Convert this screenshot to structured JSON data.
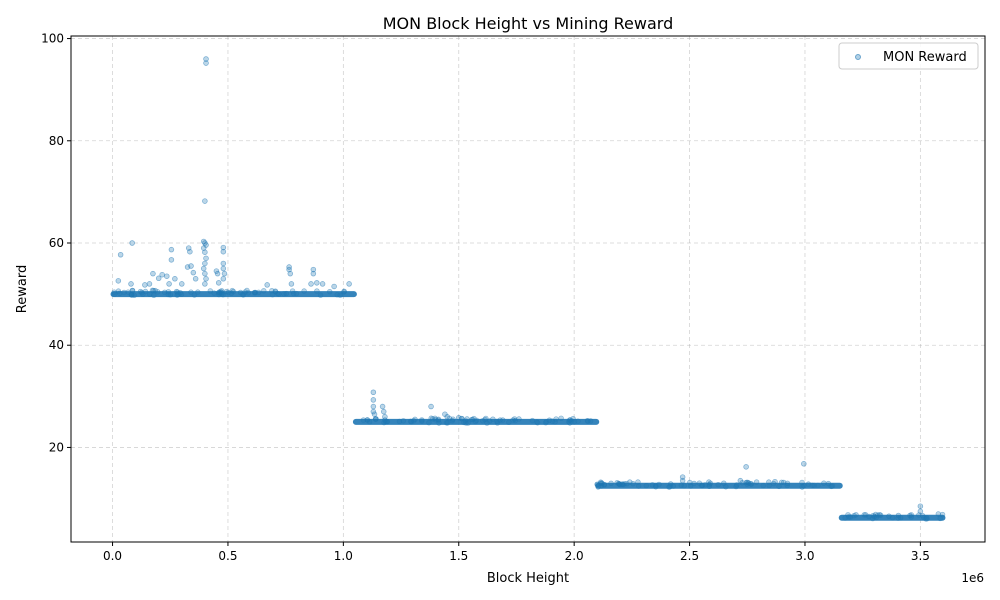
{
  "chart_data": {
    "type": "scatter",
    "title": "MON Block Height vs Mining Reward",
    "xlabel": "Block Height",
    "ylabel": "Reward",
    "x_offset_text": "1e6",
    "xlim": [
      -0.18,
      3.78
    ],
    "ylim": [
      1.5,
      100.5
    ],
    "x_ticks": [
      0.0,
      0.5,
      1.0,
      1.5,
      2.0,
      2.5,
      3.0,
      3.5
    ],
    "x_tick_labels": [
      "0.0",
      "0.5",
      "1.0",
      "1.5",
      "2.0",
      "2.5",
      "3.0",
      "3.5"
    ],
    "y_ticks": [
      20,
      40,
      60,
      80,
      100
    ],
    "y_tick_labels": [
      "20",
      "40",
      "60",
      "80",
      "100"
    ],
    "grid": true,
    "legend_position": "top-right",
    "series": [
      {
        "name": "MON Reward",
        "color": "#1f77b4",
        "marker": "circle",
        "alpha": 0.3,
        "bands": [
          {
            "x_start": 0.0,
            "x_end": 1.05,
            "y": 50.0
          },
          {
            "x_start": 1.05,
            "x_end": 2.1,
            "y": 25.0
          },
          {
            "x_start": 2.1,
            "x_end": 3.155,
            "y": 12.5
          },
          {
            "x_start": 3.155,
            "x_end": 3.6,
            "y": 6.25
          }
        ],
        "outliers": [
          [
            0.405,
            96.0
          ],
          [
            0.405,
            95.2
          ],
          [
            0.4,
            68.2
          ],
          [
            0.395,
            60.3
          ],
          [
            0.4,
            60.0
          ],
          [
            0.405,
            59.6
          ],
          [
            0.395,
            59.0
          ],
          [
            0.4,
            58.2
          ],
          [
            0.405,
            57.0
          ],
          [
            0.4,
            56.0
          ],
          [
            0.395,
            55.0
          ],
          [
            0.4,
            54.0
          ],
          [
            0.405,
            53.0
          ],
          [
            0.4,
            52.0
          ],
          [
            0.085,
            60.0
          ],
          [
            0.035,
            57.7
          ],
          [
            0.025,
            52.6
          ],
          [
            0.08,
            52.0
          ],
          [
            0.14,
            51.8
          ],
          [
            0.16,
            52.0
          ],
          [
            0.175,
            54.0
          ],
          [
            0.2,
            53.1
          ],
          [
            0.215,
            53.8
          ],
          [
            0.235,
            53.5
          ],
          [
            0.245,
            52.0
          ],
          [
            0.255,
            58.7
          ],
          [
            0.255,
            56.7
          ],
          [
            0.27,
            53.0
          ],
          [
            0.3,
            52.0
          ],
          [
            0.325,
            55.3
          ],
          [
            0.33,
            59.0
          ],
          [
            0.335,
            58.3
          ],
          [
            0.34,
            55.5
          ],
          [
            0.35,
            54.2
          ],
          [
            0.36,
            53.0
          ],
          [
            0.45,
            54.5
          ],
          [
            0.455,
            54.0
          ],
          [
            0.46,
            52.2
          ],
          [
            0.48,
            59.1
          ],
          [
            0.48,
            58.3
          ],
          [
            0.48,
            56.0
          ],
          [
            0.48,
            55.0
          ],
          [
            0.485,
            54.0
          ],
          [
            0.48,
            53.0
          ],
          [
            0.67,
            51.8
          ],
          [
            0.765,
            55.3
          ],
          [
            0.765,
            54.8
          ],
          [
            0.77,
            54.0
          ],
          [
            0.775,
            52.0
          ],
          [
            0.86,
            52.0
          ],
          [
            0.87,
            54.8
          ],
          [
            0.87,
            54.0
          ],
          [
            0.885,
            52.2
          ],
          [
            0.91,
            52.0
          ],
          [
            0.96,
            51.5
          ],
          [
            1.025,
            52.0
          ],
          [
            1.13,
            30.8
          ],
          [
            1.13,
            29.3
          ],
          [
            1.13,
            28.0
          ],
          [
            1.13,
            27.0
          ],
          [
            1.135,
            26.5
          ],
          [
            1.17,
            28.0
          ],
          [
            1.175,
            27.0
          ],
          [
            1.18,
            26.0
          ],
          [
            1.38,
            28.0
          ],
          [
            1.44,
            26.5
          ],
          [
            1.45,
            26.0
          ],
          [
            1.5,
            25.8
          ],
          [
            2.47,
            14.2
          ],
          [
            2.47,
            13.5
          ],
          [
            2.745,
            16.2
          ],
          [
            2.72,
            13.5
          ],
          [
            2.87,
            13.3
          ],
          [
            2.995,
            16.8
          ],
          [
            3.5,
            8.5
          ],
          [
            3.5,
            7.5
          ]
        ]
      }
    ]
  }
}
